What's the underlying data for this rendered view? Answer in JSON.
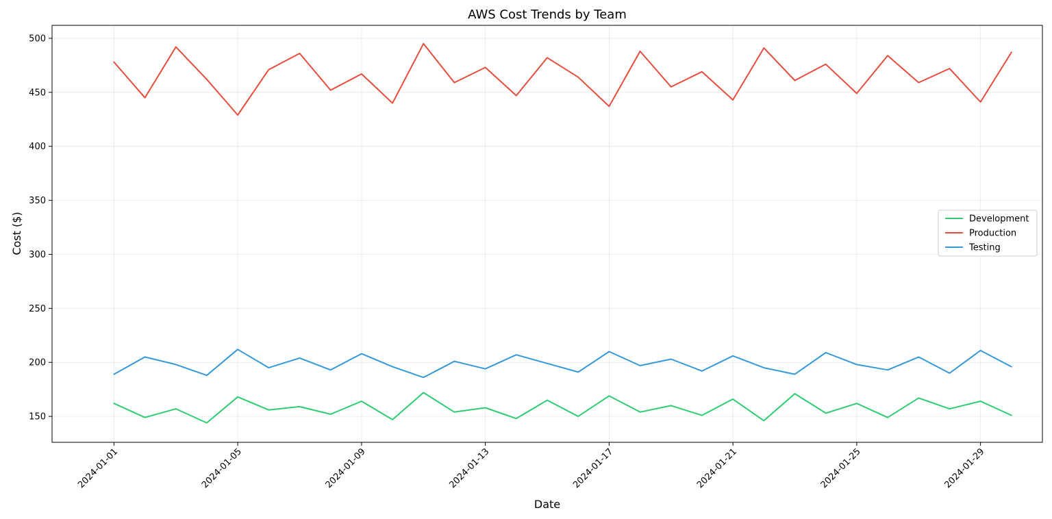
{
  "chart_data": {
    "type": "line",
    "title": "AWS Cost Trends by Team",
    "xlabel": "Date",
    "ylabel": "Cost ($)",
    "x": [
      "2024-01-01",
      "2024-01-02",
      "2024-01-03",
      "2024-01-04",
      "2024-01-05",
      "2024-01-06",
      "2024-01-07",
      "2024-01-08",
      "2024-01-09",
      "2024-01-10",
      "2024-01-11",
      "2024-01-12",
      "2024-01-13",
      "2024-01-14",
      "2024-01-15",
      "2024-01-16",
      "2024-01-17",
      "2024-01-18",
      "2024-01-19",
      "2024-01-20",
      "2024-01-21",
      "2024-01-22",
      "2024-01-23",
      "2024-01-24",
      "2024-01-25",
      "2024-01-26",
      "2024-01-27",
      "2024-01-28",
      "2024-01-29",
      "2024-01-30"
    ],
    "xticks": [
      "2024-01-01",
      "2024-01-05",
      "2024-01-09",
      "2024-01-13",
      "2024-01-17",
      "2024-01-21",
      "2024-01-25",
      "2024-01-29"
    ],
    "yticks": [
      150,
      200,
      250,
      300,
      350,
      400,
      450,
      500
    ],
    "ylim": [
      126,
      512
    ],
    "xlim": [
      "2023-12-30",
      "2024-01-31"
    ],
    "grid": true,
    "legend_position": "center-right",
    "series": [
      {
        "name": "Development",
        "color": "#2ecc71",
        "values": [
          162,
          149,
          157,
          144,
          168,
          156,
          159,
          152,
          164,
          147,
          172,
          154,
          158,
          148,
          165,
          150,
          169,
          154,
          160,
          151,
          166,
          146,
          171,
          153,
          162,
          149,
          167,
          157,
          164,
          151
        ]
      },
      {
        "name": "Production",
        "color": "#e74c3c",
        "values": [
          478,
          445,
          492,
          462,
          429,
          471,
          486,
          452,
          467,
          440,
          495,
          459,
          473,
          447,
          482,
          464,
          437,
          488,
          455,
          469,
          443,
          491,
          461,
          476,
          449,
          484,
          459,
          472,
          441,
          487
        ]
      },
      {
        "name": "Testing",
        "color": "#3498db",
        "values": [
          189,
          205,
          198,
          188,
          212,
          195,
          204,
          193,
          208,
          196,
          186,
          201,
          194,
          207,
          199,
          191,
          210,
          197,
          203,
          192,
          206,
          195,
          189,
          209,
          198,
          193,
          205,
          190,
          211,
          196
        ]
      }
    ]
  }
}
